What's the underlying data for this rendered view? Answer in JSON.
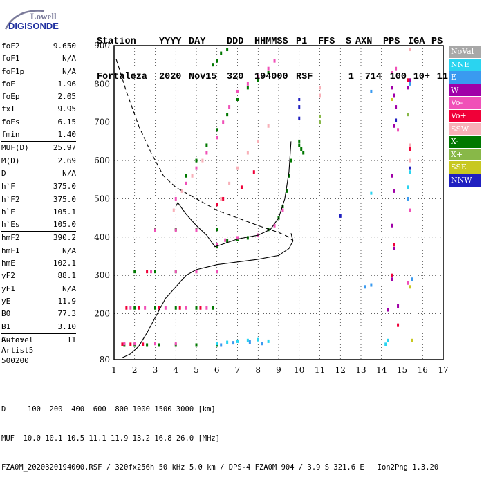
{
  "logo": {
    "line1": "Lowell",
    "line2": "DIGISONDE"
  },
  "header": {
    "labels": [
      "Station",
      "YYYY",
      "DAY",
      "DDD",
      "HHMMSS",
      "P1",
      "FFS",
      "S",
      "AXN",
      "PPS",
      "IGA",
      "PS"
    ],
    "values": [
      "Fortaleza",
      "2020",
      "Nov15",
      "320",
      "194000",
      "RSF",
      "",
      "1",
      "714",
      "100",
      "10+",
      "11"
    ]
  },
  "params": [
    {
      "name": "foF2",
      "value": "9.650"
    },
    {
      "name": "foF1",
      "value": "N/A"
    },
    {
      "name": "foF1p",
      "value": "N/A"
    },
    {
      "name": "foE",
      "value": "1.96"
    },
    {
      "name": "foEp",
      "value": "2.05"
    },
    {
      "name": "fxI",
      "value": "9.95"
    },
    {
      "name": "foEs",
      "value": "6.15"
    },
    {
      "name": "fmin",
      "value": "1.40"
    },
    {
      "name": "MUF(D)",
      "value": "25.97",
      "sep": true
    },
    {
      "name": "M(D)",
      "value": "2.69"
    },
    {
      "name": "D",
      "value": "N/A"
    },
    {
      "name": "h`F",
      "value": "375.0",
      "sep": true
    },
    {
      "name": "h`F2",
      "value": "375.0"
    },
    {
      "name": "h`E",
      "value": "105.1"
    },
    {
      "name": "h`Es",
      "value": "105.0"
    },
    {
      "name": "hmF2",
      "value": "390.2",
      "sep": true
    },
    {
      "name": "hmF1",
      "value": "N/A"
    },
    {
      "name": "hmE",
      "value": "102.1"
    },
    {
      "name": "yF2",
      "value": "88.1"
    },
    {
      "name": "yF1",
      "value": "N/A"
    },
    {
      "name": "yE",
      "value": "11.9"
    },
    {
      "name": "B0",
      "value": "77.3"
    },
    {
      "name": "B1",
      "value": "3.10"
    },
    {
      "name": "C-level",
      "value": "11",
      "sep": true
    }
  ],
  "auto": {
    "line1": "Auto:",
    "line2": "Artist5",
    "line3": "500200"
  },
  "legend": [
    {
      "label": "NoVal",
      "color": "#a8a8a8"
    },
    {
      "label": "NNE",
      "color": "#2ad4f0"
    },
    {
      "label": "E",
      "color": "#3a9af0"
    },
    {
      "label": "W",
      "color": "#a000a8"
    },
    {
      "label": "Vo-",
      "color": "#f050b8"
    },
    {
      "label": "Vo+",
      "color": "#f00038"
    },
    {
      "label": "SSW",
      "color": "#f8b0b8"
    },
    {
      "label": "X-",
      "color": "#007800"
    },
    {
      "label": "X+",
      "color": "#88b848"
    },
    {
      "label": "SSE",
      "color": "#c8c820"
    },
    {
      "label": "NNW",
      "color": "#2020c0"
    }
  ],
  "footer": {
    "line1": "D     100  200  400  600  800 1000 1500 3000 [km]",
    "line2": "MUF  10.0 10.1 10.5 11.1 11.9 13.2 16.8 26.0 [MHz]",
    "line3": "FZA0M_2020320194000.RSF / 320fx256h 50 kHz 5.0 km / DPS-4 FZA0M 904 / 3.9 S 321.6 E   Ion2Png 1.3.20"
  },
  "chart_data": {
    "type": "scatter",
    "xlim": [
      1,
      17
    ],
    "ylim": [
      80,
      900
    ],
    "x_ticks": [
      "1",
      "2",
      "3",
      "4",
      "5",
      "6",
      "7",
      "8",
      "9",
      "10",
      "11",
      "12",
      "13",
      "14",
      "15",
      "16",
      "17"
    ],
    "y_ticks": [
      "80",
      "200",
      "300",
      "400",
      "500",
      "600",
      "700",
      "800",
      "900"
    ],
    "grid": true,
    "profile_solid": [
      [
        1.4,
        85
      ],
      [
        1.8,
        95
      ],
      [
        2.2,
        115
      ],
      [
        2.6,
        150
      ],
      [
        3.0,
        190
      ],
      [
        3.5,
        240
      ],
      [
        4.0,
        270
      ],
      [
        4.5,
        300
      ],
      [
        5.0,
        315
      ],
      [
        6.0,
        328
      ],
      [
        7.0,
        335
      ],
      [
        8.0,
        342
      ],
      [
        9.0,
        352
      ],
      [
        9.5,
        370
      ],
      [
        9.7,
        390
      ],
      [
        9.6,
        410
      ]
    ],
    "profile_dashed": [
      [
        1.1,
        865
      ],
      [
        1.6,
        780
      ],
      [
        2.2,
        690
      ],
      [
        2.8,
        620
      ],
      [
        3.4,
        560
      ],
      [
        4.0,
        530
      ],
      [
        5.0,
        500
      ],
      [
        6.0,
        470
      ],
      [
        7.0,
        450
      ],
      [
        8.0,
        430
      ],
      [
        9.0,
        412
      ],
      [
        9.5,
        400
      ],
      [
        9.7,
        390
      ]
    ],
    "trace_solid": [
      [
        4.0,
        480
      ],
      [
        4.1,
        490
      ],
      [
        4.5,
        460
      ],
      [
        5.0,
        430
      ],
      [
        5.5,
        405
      ],
      [
        5.9,
        375
      ],
      [
        6.2,
        380
      ],
      [
        7.0,
        395
      ],
      [
        8.0,
        405
      ],
      [
        8.6,
        420
      ],
      [
        9.0,
        450
      ],
      [
        9.3,
        500
      ],
      [
        9.5,
        570
      ],
      [
        9.6,
        650
      ]
    ],
    "echo_groups": [
      {
        "color": "#007800",
        "points": [
          [
            6.0,
            375
          ],
          [
            6.5,
            390
          ],
          [
            7.0,
            395
          ],
          [
            7.5,
            398
          ],
          [
            8.0,
            405
          ],
          [
            8.5,
            420
          ],
          [
            9.0,
            450
          ],
          [
            9.2,
            480
          ],
          [
            9.4,
            520
          ],
          [
            9.5,
            560
          ],
          [
            9.6,
            600
          ],
          [
            10.0,
            640
          ],
          [
            10.2,
            620
          ]
        ]
      },
      {
        "color": "#f050b8",
        "points": [
          [
            6.0,
            380
          ],
          [
            6.4,
            392
          ],
          [
            7.0,
            398
          ],
          [
            8.0,
            405
          ],
          [
            8.8,
            430
          ],
          [
            9.2,
            470
          ]
        ]
      },
      {
        "color": "#007800",
        "points": [
          [
            2.0,
            215
          ],
          [
            3.0,
            215
          ],
          [
            4.0,
            215
          ],
          [
            5.0,
            215
          ],
          [
            5.8,
            215
          ],
          [
            2.0,
            310
          ],
          [
            3.0,
            310
          ],
          [
            4.0,
            310
          ],
          [
            5.0,
            310
          ],
          [
            6.0,
            310
          ]
        ]
      },
      {
        "color": "#f050b8",
        "points": [
          [
            1.8,
            215
          ],
          [
            2.5,
            215
          ],
          [
            3.5,
            215
          ],
          [
            4.5,
            215
          ],
          [
            5.5,
            215
          ],
          [
            2.8,
            310
          ],
          [
            4.0,
            310
          ],
          [
            5.0,
            310
          ],
          [
            6.0,
            310
          ]
        ]
      },
      {
        "color": "#f00038",
        "points": [
          [
            1.6,
            215
          ],
          [
            2.2,
            215
          ],
          [
            3.2,
            215
          ],
          [
            4.2,
            215
          ],
          [
            5.2,
            215
          ],
          [
            2.6,
            310
          ]
        ]
      },
      {
        "color": "#007800",
        "points": [
          [
            1.5,
            118
          ],
          [
            2.0,
            118
          ],
          [
            2.6,
            118
          ],
          [
            3.2,
            118
          ],
          [
            4.0,
            118
          ],
          [
            5.0,
            118
          ],
          [
            6.0,
            118
          ],
          [
            3.0,
            420
          ],
          [
            4.0,
            420
          ],
          [
            5.0,
            420
          ],
          [
            6.0,
            420
          ]
        ]
      },
      {
        "color": "#f050b8",
        "points": [
          [
            1.5,
            122
          ],
          [
            2.0,
            122
          ],
          [
            3.0,
            122
          ],
          [
            4.0,
            122
          ],
          [
            3.0,
            418
          ],
          [
            4.0,
            418
          ],
          [
            5.0,
            418
          ]
        ]
      },
      {
        "color": "#f00038",
        "points": [
          [
            1.4,
            120
          ],
          [
            1.8,
            120
          ],
          [
            2.4,
            120
          ]
        ]
      },
      {
        "color": "#2ad4f0",
        "points": [
          [
            6.0,
            122
          ],
          [
            6.5,
            125
          ],
          [
            7.0,
            128
          ],
          [
            7.5,
            130
          ],
          [
            8.0,
            132
          ],
          [
            8.5,
            128
          ]
        ]
      },
      {
        "color": "#3a9af0",
        "points": [
          [
            6.2,
            118
          ],
          [
            6.8,
            124
          ],
          [
            7.6,
            126
          ],
          [
            8.2,
            122
          ]
        ]
      },
      {
        "color": "#f050b8",
        "points": [
          [
            4.0,
            500
          ],
          [
            4.5,
            540
          ],
          [
            5.0,
            580
          ],
          [
            5.5,
            620
          ],
          [
            6.0,
            660
          ],
          [
            6.3,
            700
          ],
          [
            6.6,
            740
          ],
          [
            7.0,
            780
          ],
          [
            7.5,
            800
          ],
          [
            8.0,
            820
          ],
          [
            8.5,
            840
          ],
          [
            8.8,
            860
          ]
        ]
      },
      {
        "color": "#007800",
        "points": [
          [
            4.5,
            560
          ],
          [
            5.0,
            600
          ],
          [
            5.5,
            640
          ],
          [
            6.0,
            680
          ],
          [
            6.5,
            720
          ],
          [
            7.0,
            760
          ],
          [
            7.5,
            790
          ],
          [
            8.0,
            810
          ],
          [
            8.5,
            830
          ]
        ]
      },
      {
        "color": "#f8b0b8",
        "points": [
          [
            3.9,
            470
          ],
          [
            4.3,
            520
          ],
          [
            4.8,
            560
          ],
          [
            5.3,
            600
          ],
          [
            6.2,
            500
          ],
          [
            6.6,
            540
          ],
          [
            7.0,
            580
          ],
          [
            7.5,
            620
          ],
          [
            8.0,
            650
          ],
          [
            8.5,
            690
          ]
        ]
      },
      {
        "color": "#007800",
        "points": [
          [
            6.0,
            860
          ],
          [
            6.2,
            880
          ],
          [
            6.5,
            890
          ],
          [
            5.8,
            850
          ]
        ]
      },
      {
        "color": "#f00038",
        "points": [
          [
            6.0,
            485
          ],
          [
            6.3,
            500
          ],
          [
            7.2,
            530
          ],
          [
            7.8,
            570
          ]
        ]
      },
      {
        "color": "#2020c0",
        "points": [
          [
            10.0,
            760
          ],
          [
            10.0,
            740
          ],
          [
            10.0,
            710
          ],
          [
            12.0,
            455
          ],
          [
            14.7,
            705
          ],
          [
            15.4,
            580
          ]
        ]
      },
      {
        "color": "#a000a8",
        "points": [
          [
            14.5,
            790
          ],
          [
            14.6,
            770
          ],
          [
            14.7,
            740
          ],
          [
            14.6,
            690
          ],
          [
            14.5,
            560
          ],
          [
            14.6,
            520
          ],
          [
            14.6,
            370
          ],
          [
            14.5,
            430
          ],
          [
            14.5,
            290
          ],
          [
            14.8,
            220
          ],
          [
            14.3,
            210
          ],
          [
            15.3,
            790
          ],
          [
            15.4,
            810
          ]
        ]
      },
      {
        "color": "#3a9af0",
        "points": [
          [
            13.5,
            780
          ],
          [
            13.5,
            275
          ],
          [
            13.2,
            270
          ],
          [
            15.4,
            800
          ],
          [
            15.3,
            500
          ],
          [
            15.5,
            290
          ]
        ]
      },
      {
        "color": "#f050b8",
        "points": [
          [
            14.5,
            830
          ],
          [
            14.7,
            840
          ],
          [
            14.8,
            680
          ],
          [
            15.4,
            470
          ],
          [
            15.3,
            280
          ]
        ]
      },
      {
        "color": "#f00038",
        "points": [
          [
            14.6,
            380
          ],
          [
            14.5,
            300
          ],
          [
            14.8,
            170
          ],
          [
            15.4,
            630
          ],
          [
            15.3,
            810
          ]
        ]
      },
      {
        "color": "#2ad4f0",
        "points": [
          [
            13.5,
            515
          ],
          [
            14.3,
            130
          ],
          [
            14.2,
            120
          ],
          [
            15.3,
            530
          ],
          [
            15.4,
            570
          ]
        ]
      },
      {
        "color": "#c8c820",
        "points": [
          [
            14.5,
            760
          ],
          [
            15.4,
            270
          ],
          [
            15.5,
            130
          ]
        ]
      },
      {
        "color": "#f8b0b8",
        "points": [
          [
            11.0,
            790
          ],
          [
            11.0,
            770
          ],
          [
            15.4,
            890
          ],
          [
            15.4,
            640
          ],
          [
            15.4,
            600
          ]
        ]
      },
      {
        "color": "#88b848",
        "points": [
          [
            11.0,
            715
          ],
          [
            11.0,
            700
          ],
          [
            15.3,
            720
          ]
        ]
      },
      {
        "color": "#007800",
        "points": [
          [
            10.0,
            650
          ],
          [
            10.1,
            630
          ]
        ]
      }
    ]
  }
}
